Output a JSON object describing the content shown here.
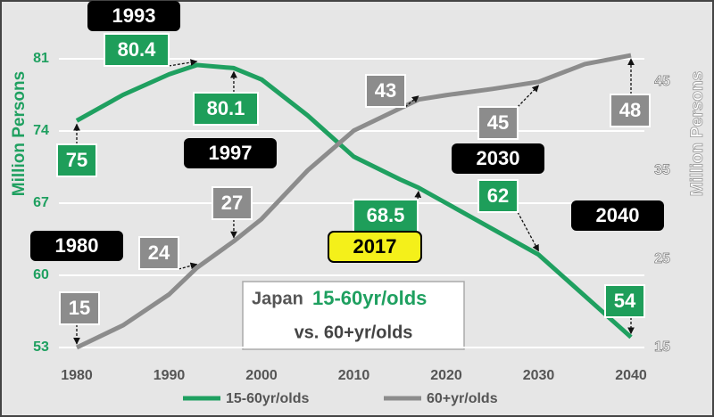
{
  "chart_data": {
    "type": "line",
    "title_parts": [
      "Japan",
      "15-60yr/olds",
      "vs. 60+yr/olds"
    ],
    "ylabel": "Million Persons",
    "y2label": "Million Persons",
    "x": [
      1980,
      1985,
      1990,
      1993,
      1997,
      2000,
      2005,
      2010,
      2015,
      2017,
      2020,
      2025,
      2030,
      2035,
      2040
    ],
    "xlim": [
      1980,
      2040
    ],
    "xticks": [
      1980,
      1990,
      2000,
      2010,
      2020,
      2030,
      2040
    ],
    "ylim": [
      53,
      81
    ],
    "yticks": [
      53,
      60,
      67,
      74,
      81
    ],
    "y2lim": [
      15,
      47.6
    ],
    "y2ticks": [
      15,
      25,
      35,
      45
    ],
    "grid": true,
    "year_labels": [
      1980,
      1993,
      1997,
      2017,
      2030,
      2040
    ],
    "highlight_year": 2017,
    "series": [
      {
        "name": "15-60yr/olds",
        "color": "#1fa060",
        "axis": "y",
        "values": [
          75,
          77.5,
          79.5,
          80.4,
          80.1,
          79,
          75.5,
          71.5,
          69.3,
          68.5,
          67,
          64.5,
          62,
          58,
          54
        ],
        "value_labels": [
          "75",
          null,
          null,
          "80.4",
          "80.1",
          null,
          null,
          null,
          null,
          "68.5",
          null,
          null,
          "62",
          null,
          "54"
        ]
      },
      {
        "name": "60+yr/olds",
        "color": "#8c8c8c",
        "axis": "y2",
        "values": [
          15,
          17.5,
          21,
          24,
          27,
          29.5,
          35,
          39.5,
          42,
          43,
          43.5,
          44.2,
          45,
          47,
          48
        ],
        "value_labels": [
          "15",
          null,
          null,
          "24",
          "27",
          null,
          null,
          null,
          null,
          "43",
          null,
          null,
          "45",
          null,
          "48"
        ]
      }
    ]
  }
}
